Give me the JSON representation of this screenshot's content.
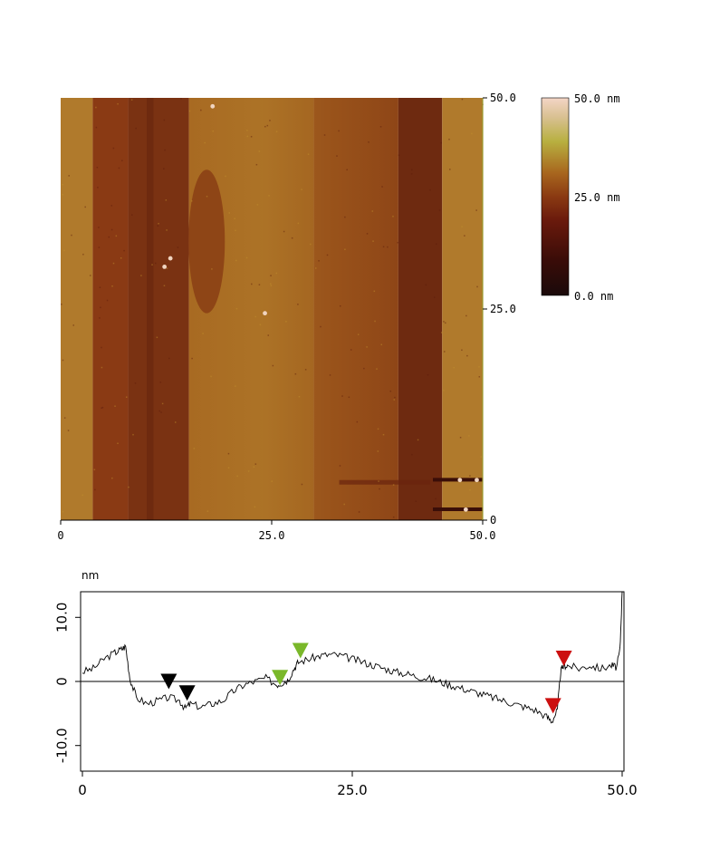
{
  "chart_data": [
    {
      "type": "heatmap",
      "xlim": [
        0,
        50.0
      ],
      "ylim": [
        0,
        50.0
      ],
      "x_tick_labels": [
        "0",
        "25.0",
        "50.0"
      ],
      "y_tick_labels": [
        "0",
        "25.0",
        "50.0"
      ],
      "colorbar": {
        "range": [
          0.0,
          50.0
        ],
        "labels": [
          "50.0 nm",
          "25.0 nm",
          "0.0 nm"
        ],
        "colors": [
          "#1a0a0a",
          "#4a0f0a",
          "#7a2a10",
          "#a8561a",
          "#c78a2a",
          "#b8b840",
          "#e8c8a8",
          "#f4d8c8"
        ]
      },
      "regions": [
        {
          "x": [
            0,
            3.8
          ],
          "height_nm": 34,
          "color": "#b07a2c"
        },
        {
          "x": [
            3.8,
            8.0
          ],
          "height_nm": 26,
          "color": "#8a3a14"
        },
        {
          "x": [
            8.0,
            15.2
          ],
          "height_nm": 24,
          "color": "#7a3212"
        },
        {
          "x": [
            15.2,
            30.0
          ],
          "height_nm": 31,
          "color": "#a86a22"
        },
        {
          "x": [
            30.0,
            40.0
          ],
          "height_nm": 27,
          "color": "#944818"
        },
        {
          "x": [
            40.0,
            45.2
          ],
          "height_nm": 20,
          "color": "#6e2a10"
        },
        {
          "x": [
            45.2,
            50.0
          ],
          "height_nm": 34,
          "color": "#b07a2c"
        }
      ]
    },
    {
      "type": "line",
      "ylabel": "nm",
      "xlim": [
        0,
        50.0
      ],
      "ylim": [
        -14,
        14
      ],
      "x_tick_labels": [
        "0",
        "25.0",
        "50.0"
      ],
      "y_tick_labels": [
        "10.0",
        "0",
        "-10.0"
      ],
      "y_ticks": [
        10.0,
        0,
        -10.0
      ],
      "x": [
        0,
        1,
        2,
        3,
        3.6,
        4.0,
        4.4,
        5,
        6,
        7,
        8,
        9,
        9.5,
        10,
        11,
        12,
        13,
        14,
        15,
        16,
        17,
        18,
        18.5,
        19,
        19.6,
        20,
        21,
        22,
        23,
        24,
        25,
        26,
        27,
        28,
        29,
        30,
        31,
        32,
        33,
        34,
        35,
        36,
        37,
        38,
        39,
        40,
        41,
        42,
        43,
        43.5,
        44.0,
        44.3,
        44.6,
        45,
        46,
        47,
        48,
        49,
        49.5,
        49.8,
        50.0
      ],
      "y": [
        1.5,
        2.0,
        3.5,
        4.5,
        5.0,
        5.5,
        0.5,
        -2.5,
        -3.5,
        -3.0,
        -2.5,
        -3.0,
        -4.2,
        -3.5,
        -4.0,
        -3.5,
        -3.0,
        -1.5,
        -0.5,
        0.0,
        0.5,
        -0.5,
        -0.2,
        0.2,
        2.0,
        3.0,
        3.5,
        4.0,
        4.2,
        4.0,
        3.5,
        3.0,
        2.5,
        2.0,
        1.5,
        1.2,
        0.8,
        0.5,
        0.0,
        -0.5,
        -1.0,
        -1.5,
        -2.0,
        -2.5,
        -3.0,
        -3.5,
        -4.0,
        -4.5,
        -5.5,
        -6.2,
        -4.5,
        1.5,
        2.5,
        2.5,
        2.0,
        2.5,
        2.0,
        2.5,
        2.2,
        5.0,
        14.0
      ],
      "markers": [
        {
          "x": 8.0,
          "y": -1.2,
          "color": "#000000"
        },
        {
          "x": 9.7,
          "y": -3.0,
          "color": "#000000"
        },
        {
          "x": 18.3,
          "y": -0.6,
          "color": "#7ab82a"
        },
        {
          "x": 20.2,
          "y": 3.6,
          "color": "#7ab82a"
        },
        {
          "x": 43.6,
          "y": -5.0,
          "color": "#cc1010"
        },
        {
          "x": 44.6,
          "y": 2.4,
          "color": "#cc1010"
        }
      ]
    }
  ]
}
